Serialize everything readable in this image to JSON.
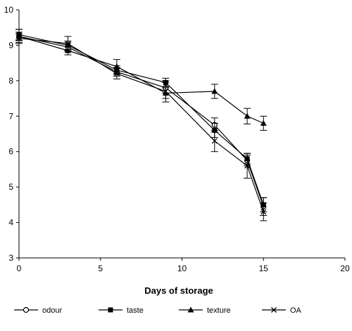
{
  "chart_data": {
    "type": "line",
    "title": "",
    "xlabel": "Days of storage",
    "ylabel": "",
    "xlim": [
      0,
      20
    ],
    "ylim": [
      3,
      10
    ],
    "x_ticks": [
      0,
      5,
      10,
      15,
      20
    ],
    "y_ticks": [
      3,
      4,
      5,
      6,
      7,
      8,
      9,
      10
    ],
    "grid": false,
    "legend_position": "bottom",
    "x": [
      0,
      3,
      6,
      9,
      12,
      14,
      15
    ],
    "series": [
      {
        "name": "odour",
        "marker": "open-circle",
        "values": [
          9.25,
          8.95,
          8.25,
          7.8,
          6.75,
          5.75,
          4.45
        ],
        "error": [
          0.2,
          0.12,
          0.12,
          0.15,
          0.2,
          0.15,
          0.25
        ]
      },
      {
        "name": "taste",
        "marker": "filled-square",
        "values": [
          9.3,
          9.0,
          8.3,
          7.95,
          6.6,
          5.8,
          4.5
        ],
        "error": [
          0.15,
          0.12,
          0.12,
          0.12,
          0.2,
          0.15,
          0.2
        ]
      },
      {
        "name": "texture",
        "marker": "filled-triangle",
        "values": [
          9.25,
          8.85,
          8.4,
          7.65,
          7.7,
          7.0,
          6.8
        ],
        "error": [
          0.12,
          0.12,
          0.2,
          0.15,
          0.2,
          0.22,
          0.2
        ]
      },
      {
        "name": "OA",
        "marker": "x",
        "values": [
          9.2,
          9.05,
          8.2,
          7.7,
          6.3,
          5.6,
          4.3
        ],
        "error": [
          0.12,
          0.2,
          0.15,
          0.3,
          0.3,
          0.35,
          0.25
        ]
      }
    ]
  }
}
